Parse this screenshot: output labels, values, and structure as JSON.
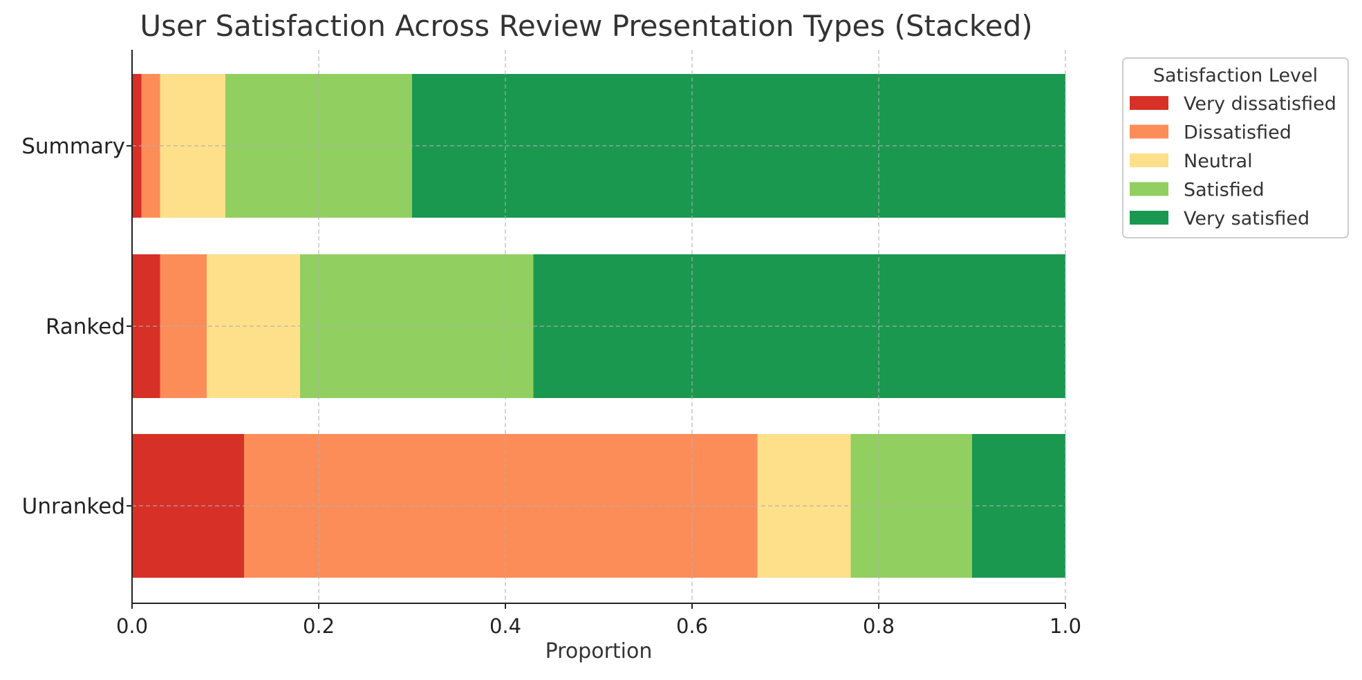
{
  "chart_data": {
    "type": "bar",
    "orientation": "horizontal",
    "stacked": true,
    "title": "User Satisfaction Across Review Presentation Types (Stacked)",
    "xlabel": "Proportion",
    "ylabel": "",
    "xlim": [
      0,
      1
    ],
    "xticks": [
      0.0,
      0.2,
      0.4,
      0.6,
      0.8,
      1.0
    ],
    "xtick_labels": [
      "0.0",
      "0.2",
      "0.4",
      "0.6",
      "0.8",
      "1.0"
    ],
    "grid": true,
    "categories": [
      "Summary",
      "Ranked",
      "Unranked"
    ],
    "series": [
      {
        "name": "Very dissatisfied",
        "color": "#d73027",
        "values": [
          0.01,
          0.03,
          0.12
        ]
      },
      {
        "name": "Dissatisfied",
        "color": "#fc8d59",
        "values": [
          0.02,
          0.05,
          0.55
        ]
      },
      {
        "name": "Neutral",
        "color": "#fee08b",
        "values": [
          0.07,
          0.1,
          0.1
        ]
      },
      {
        "name": "Satisfied",
        "color": "#91cf60",
        "values": [
          0.2,
          0.25,
          0.13
        ]
      },
      {
        "name": "Very satisfied",
        "color": "#1a9850",
        "values": [
          0.7,
          0.57,
          0.1
        ]
      }
    ],
    "legend": {
      "title": "Satisfaction Level",
      "placement": "outside-top-right"
    }
  }
}
